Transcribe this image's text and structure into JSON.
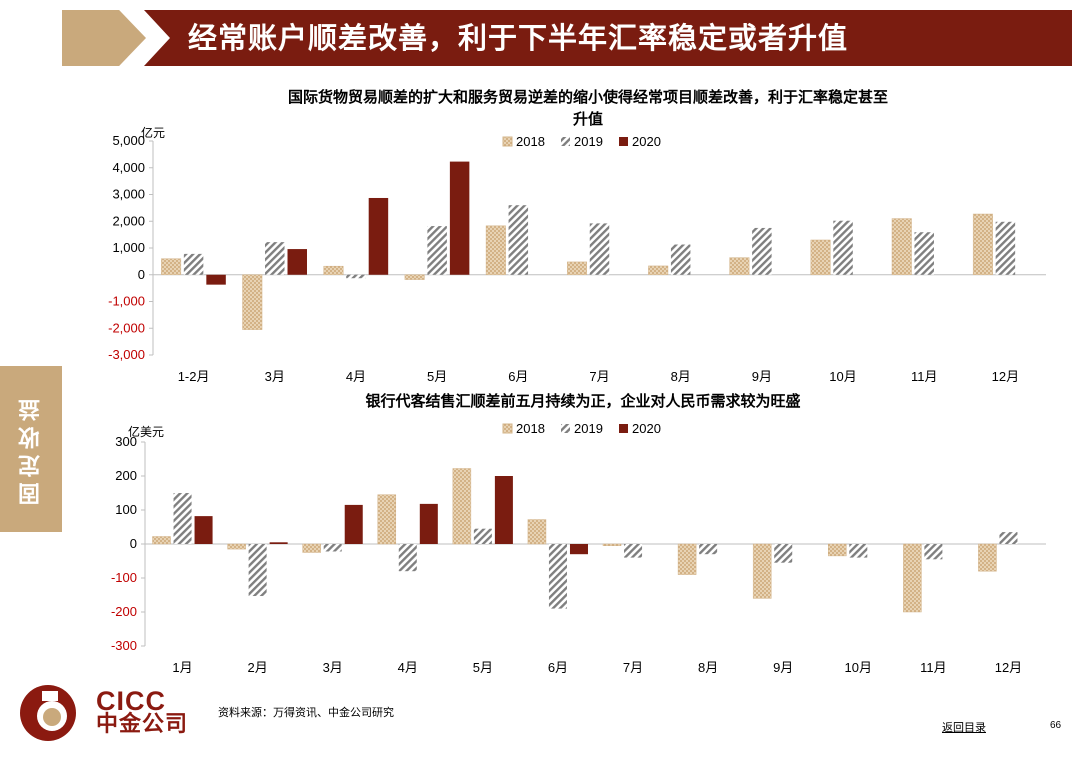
{
  "header": {
    "title": "经常账户顺差改善，利于下半年汇率稳定或者升值"
  },
  "side_tab": {
    "label": "固定收益"
  },
  "colors": {
    "y2018": "#d8b98f",
    "y2019": "#808080",
    "y2020": "#7a1c10",
    "brand": "#7a1c10",
    "tan": "#c9a97c",
    "negative_tick": "#c00000"
  },
  "chart_data": [
    {
      "type": "bar",
      "title_line1": "国际货物贸易顺差的扩大和服务贸易逆差的缩小使得经常项目顺差改善，利于汇率稳定甚至",
      "title_line2": "升值",
      "unit": "亿元",
      "categories": [
        "1-2月",
        "3月",
        "4月",
        "5月",
        "6月",
        "7月",
        "8月",
        "9月",
        "10月",
        "11月",
        "12月"
      ],
      "series": [
        {
          "name": "2018",
          "values": [
            600,
            -2050,
            320,
            -180,
            1830,
            480,
            330,
            640,
            1300,
            2100,
            2270
          ]
        },
        {
          "name": "2019",
          "values": [
            780,
            1220,
            -130,
            1820,
            2600,
            1920,
            1130,
            1750,
            2020,
            1590,
            1980
          ]
        },
        {
          "name": "2020",
          "values": [
            -370,
            960,
            2870,
            4230,
            null,
            null,
            null,
            null,
            null,
            null,
            null
          ]
        }
      ],
      "ylim": [
        -3000,
        5000
      ],
      "yticks": [
        "5,000",
        "4,000",
        "3,000",
        "2,000",
        "1,000",
        "0",
        "-1,000",
        "-2,000",
        "-3,000"
      ],
      "legend": "top-center"
    },
    {
      "type": "bar",
      "title_line1": "银行代客结售汇顺差前五月持续为正，企业对人民币需求较为旺盛",
      "unit": "亿美元",
      "categories": [
        "1月",
        "2月",
        "3月",
        "4月",
        "5月",
        "6月",
        "7月",
        "8月",
        "9月",
        "10月",
        "11月",
        "12月"
      ],
      "series": [
        {
          "name": "2018",
          "values": [
            22,
            -15,
            -25,
            145,
            222,
            72,
            -5,
            -90,
            -160,
            -35,
            -200,
            -80
          ]
        },
        {
          "name": "2019",
          "values": [
            150,
            -153,
            -22,
            -80,
            45,
            -190,
            -40,
            -30,
            -55,
            -40,
            -45,
            35
          ]
        },
        {
          "name": "2020",
          "values": [
            82,
            5,
            115,
            118,
            200,
            -30,
            null,
            null,
            null,
            null,
            null,
            null
          ]
        }
      ],
      "ylim": [
        -300,
        300
      ],
      "yticks": [
        "300",
        "200",
        "100",
        "0",
        "-100",
        "-200",
        "-300"
      ],
      "legend": "top-center"
    }
  ],
  "logo": {
    "en": "CICC",
    "cn": "中金公司"
  },
  "footer": {
    "source": "资料来源：万得资讯、中金公司研究",
    "back_link": "返回目录",
    "page": "66"
  }
}
